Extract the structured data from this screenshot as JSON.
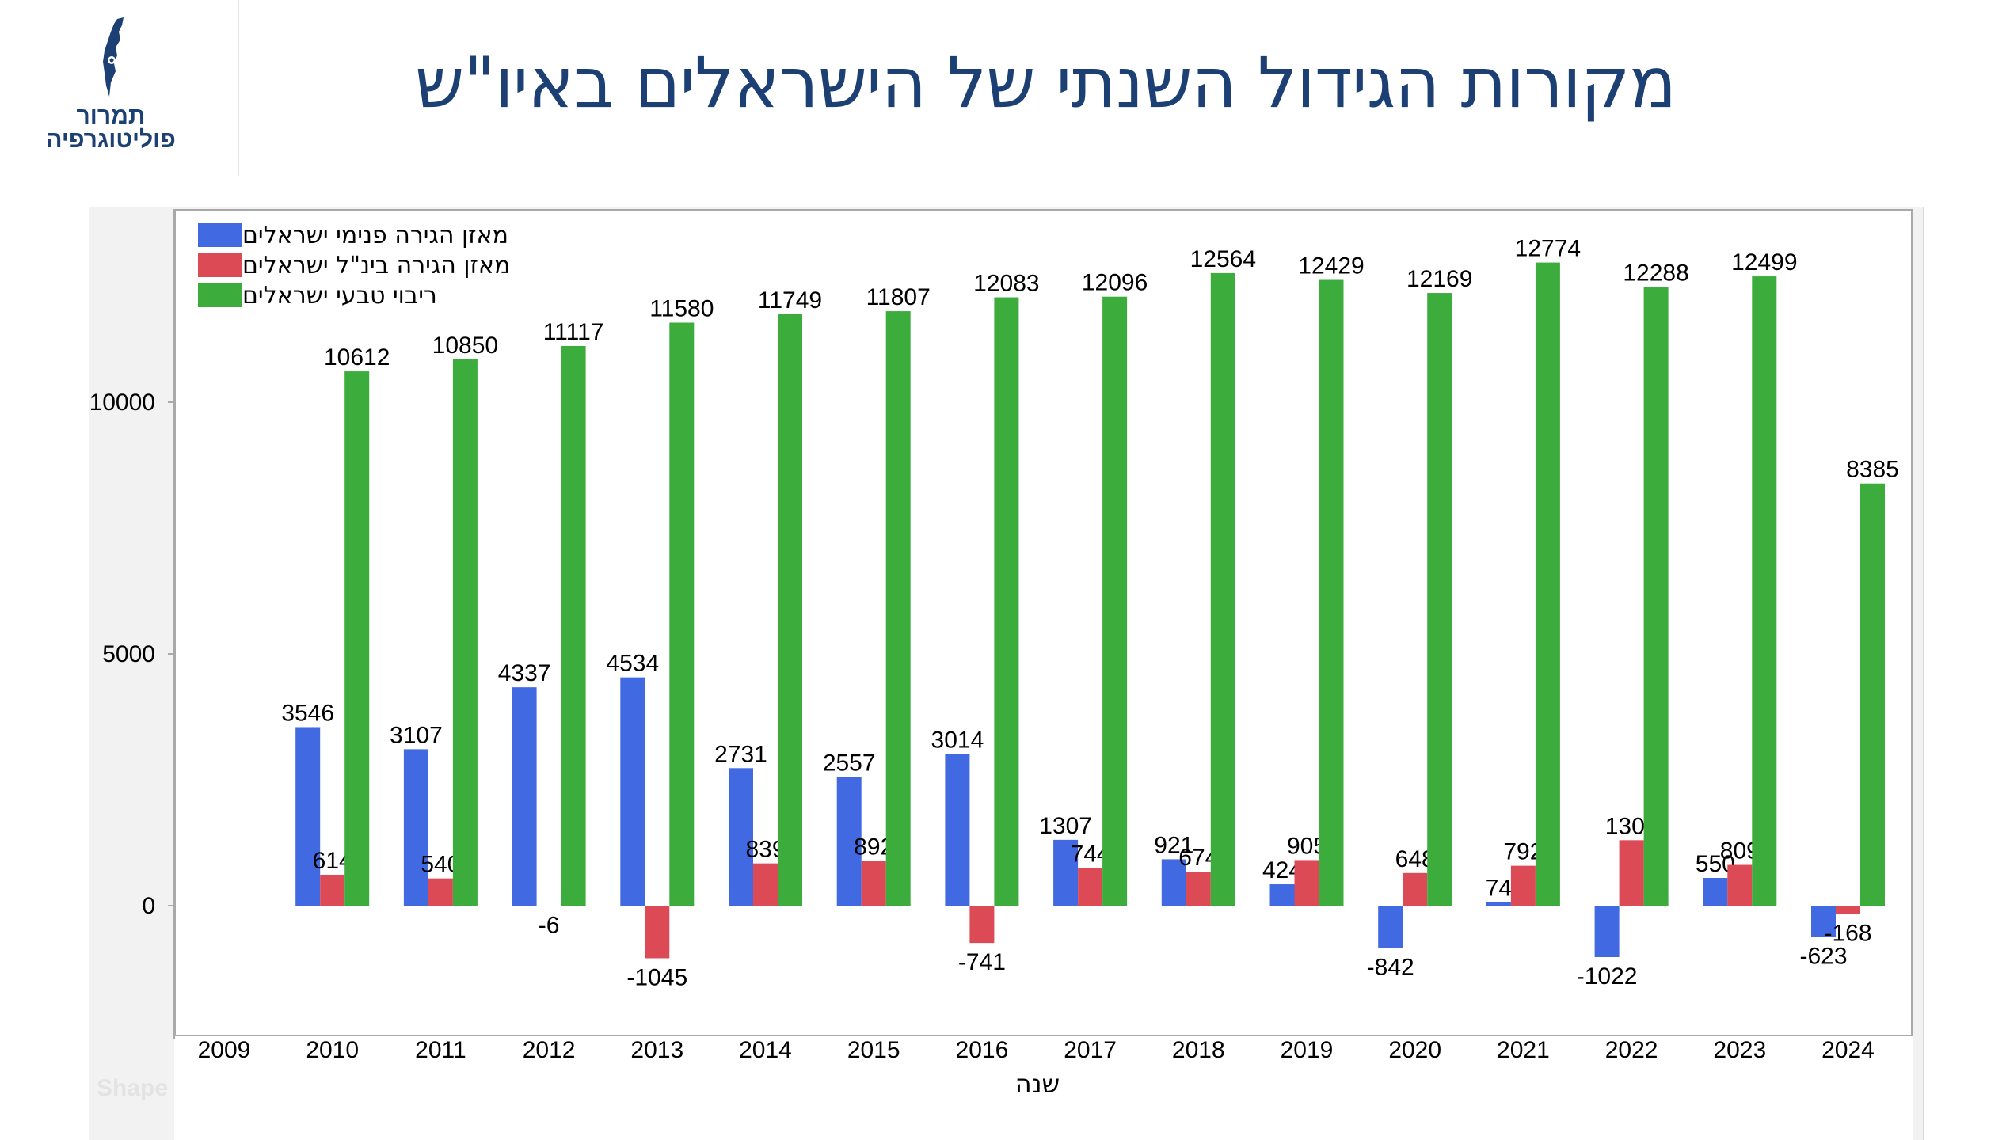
{
  "logo": {
    "line1": "תמרור",
    "line2": "פוליטוגרפיה"
  },
  "title": "מקורות הגידול השנתי של הישראלים באיו\"ש",
  "shape_text": "Shape",
  "chart_data": {
    "type": "bar",
    "xlabel": "שנה",
    "ylabel": "",
    "categories": [
      "2009",
      "2010",
      "2011",
      "2012",
      "2013",
      "2014",
      "2015",
      "2016",
      "2017",
      "2018",
      "2019",
      "2020",
      "2021",
      "2022",
      "2023",
      "2024"
    ],
    "series": [
      {
        "name": "מאזן הגירה פנימי ישראלים",
        "color": "#4169e1",
        "values": [
          null,
          3546,
          3107,
          4337,
          4534,
          2731,
          2557,
          3014,
          1307,
          921,
          424,
          -842,
          74,
          -1022,
          550,
          -623
        ]
      },
      {
        "name": "מאזן הגירה בינ\"ל ישראלים",
        "color": "#dc4a56",
        "values": [
          null,
          614,
          540,
          -6,
          -1045,
          839,
          892,
          -741,
          744,
          674,
          905,
          648,
          792,
          1300,
          809,
          -168
        ]
      },
      {
        "name": "ריבוי טבעי ישראלים",
        "color": "#3cac3c",
        "values": [
          null,
          10612,
          10850,
          11117,
          11580,
          11749,
          11807,
          12083,
          12096,
          12564,
          12429,
          12169,
          12774,
          12288,
          12499,
          8385
        ]
      }
    ],
    "yticks": [
      0,
      5000,
      10000
    ],
    "ytick_labels": [
      "0",
      "5000",
      "10000"
    ],
    "ylim": [
      -2500,
      13900
    ],
    "legend_position": "top-left",
    "grid": false
  }
}
